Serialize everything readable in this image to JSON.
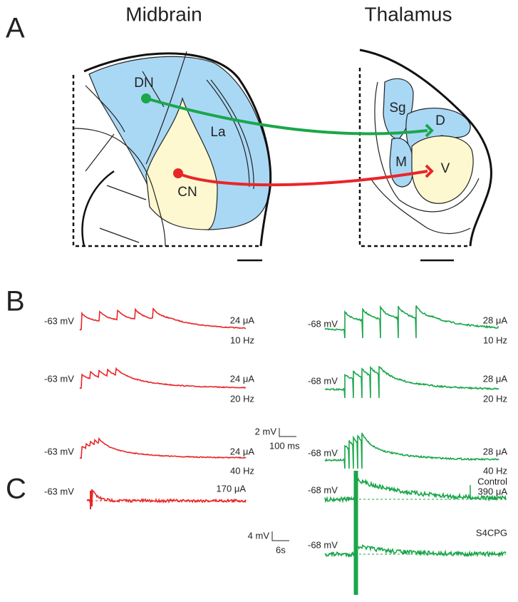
{
  "panel_a": {
    "label": "A",
    "midbrain": {
      "title": "Midbrain",
      "regions": [
        "DN",
        "La",
        "CN"
      ]
    },
    "thalamus": {
      "title": "Thalamus",
      "regions": [
        "Sg",
        "D",
        "M",
        "V"
      ]
    }
  },
  "panel_b": {
    "label": "B",
    "midbrain_traces": [
      {
        "potential": "-63 mV",
        "current": "24 μA",
        "frequency": "10 Hz"
      },
      {
        "potential": "-63 mV",
        "current": "24 μA",
        "frequency": "20 Hz"
      },
      {
        "potential": "-63 mV",
        "current": "24 μA",
        "frequency": "40 Hz"
      }
    ],
    "thalamus_traces": [
      {
        "potential": "-68 mV",
        "current": "28 μA",
        "frequency": "10 Hz"
      },
      {
        "potential": "-68 mV",
        "current": "28 μA",
        "frequency": "20 Hz"
      },
      {
        "potential": "-68 mV",
        "current": "28 μA",
        "frequency": "40 Hz"
      }
    ],
    "scale": {
      "voltage": "2 mV",
      "time": "100 ms"
    }
  },
  "panel_c": {
    "label": "C",
    "midbrain_trace": {
      "potential": "-63 mV",
      "current": "170 μA"
    },
    "thalamus_traces": [
      {
        "condition": "Control",
        "potential": "-68 mV",
        "current": "390 μA"
      },
      {
        "condition": "S4CPG",
        "potential": "-68 mV"
      }
    ],
    "scale": {
      "voltage": "4 mV",
      "time": "6s"
    }
  }
}
